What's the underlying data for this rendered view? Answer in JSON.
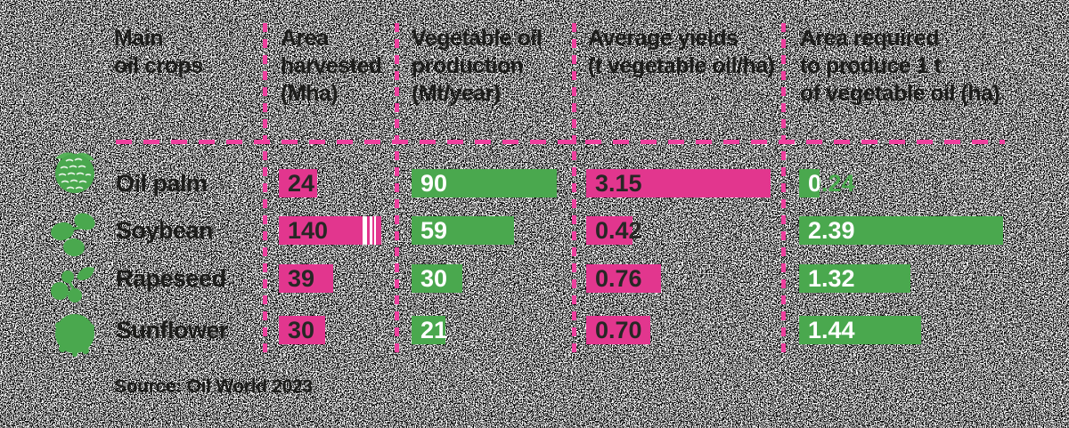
{
  "colors": {
    "bar_pink": "#e2368e",
    "bar_green": "#4aa84e",
    "dash_pink": "#ee3f9d",
    "text_dark": "#1d1d1b",
    "bar_text_light": "#ffffff"
  },
  "table": {
    "headers": {
      "crops": [
        "Main",
        "oil crops"
      ],
      "area_harvested": [
        "Area",
        "harvested",
        "(Mha)"
      ],
      "production": [
        "Vegetable oil",
        "production",
        "(Mt/year)"
      ],
      "avg_yield": [
        "Average yields",
        "(t vegetable oil/ha)"
      ],
      "area_required": [
        "Area required",
        "to produce 1 t",
        "of vegetable oil (ha)"
      ]
    },
    "rows": [
      {
        "label": "Oil palm",
        "icon": "oil-palm-fruit-icon",
        "area": {
          "v": "24",
          "px": 43
        },
        "prod": {
          "v": "90",
          "px": 163
        },
        "yld": {
          "v": "3.15",
          "px": 207
        },
        "req": {
          "v": "0.24",
          "px": 23
        }
      },
      {
        "label": "Soybean",
        "icon": "soybean-icon",
        "area": {
          "v": "140",
          "px": 115
        },
        "prod": {
          "v": "59",
          "px": 115
        },
        "yld": {
          "v": "0.42",
          "px": 52
        },
        "req": {
          "v": "2.39",
          "px": 229
        }
      },
      {
        "label": "Rapeseed",
        "icon": "rapeseed-icon",
        "area": {
          "v": "39",
          "px": 61
        },
        "prod": {
          "v": "30",
          "px": 57
        },
        "yld": {
          "v": "0.76",
          "px": 84
        },
        "req": {
          "v": "1.32",
          "px": 125
        }
      },
      {
        "label": "Sunflower",
        "icon": "sunflower-icon",
        "area": {
          "v": "30",
          "px": 52
        },
        "prod": {
          "v": "21",
          "px": 38
        },
        "yld": {
          "v": "0.70",
          "px": 72
        },
        "req": {
          "v": "1.44",
          "px": 137
        }
      }
    ]
  },
  "source": "Source: Oil World 2023",
  "chart_data": {
    "type": "bar",
    "orientation": "horizontal",
    "categories": [
      "Oil palm",
      "Soybean",
      "Rapeseed",
      "Sunflower"
    ],
    "series": [
      {
        "name": "Area harvested (Mha)",
        "values": [
          24,
          140,
          39,
          30
        ],
        "color": "#e2368e"
      },
      {
        "name": "Vegetable oil production (Mt/year)",
        "values": [
          90,
          59,
          30,
          21
        ],
        "color": "#4aa84e"
      },
      {
        "name": "Average yields (t vegetable oil/ha)",
        "values": [
          3.15,
          0.42,
          0.76,
          0.7
        ],
        "color": "#e2368e"
      },
      {
        "name": "Area required to produce 1 t of vegetable oil (ha)",
        "values": [
          0.24,
          2.39,
          1.32,
          1.44
        ],
        "color": "#4aa84e"
      }
    ],
    "title": "Main oil crops",
    "source": "Source: Oil World 2023",
    "notes": "Soybean area-harvested bar is truncated with white break stripes; values are printed on each bar."
  }
}
